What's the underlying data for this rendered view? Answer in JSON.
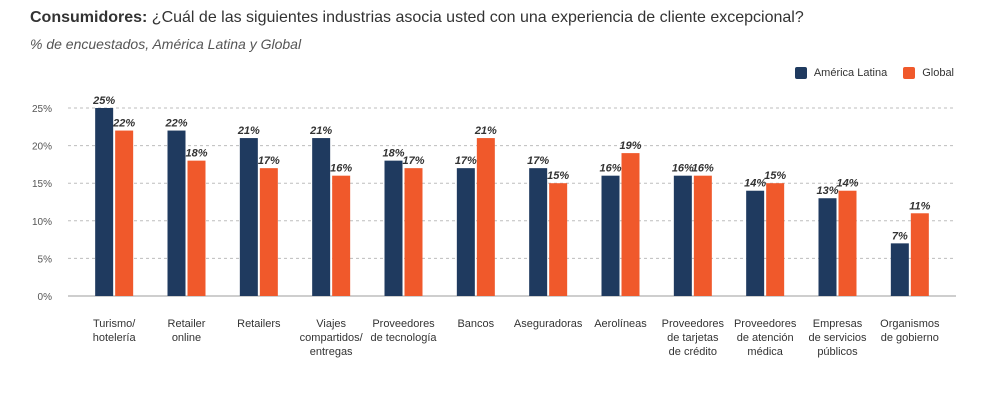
{
  "header": {
    "title_bold": "Consumidores:",
    "title_rest": " ¿Cuál de las siguientes industrias asocia usted con una experiencia de cliente excepcional?",
    "subtitle": "% de encuestados, América Latina y Global"
  },
  "colors": {
    "latam": "#1f3a5f",
    "global": "#f0592b",
    "grid": "#bdbdbd"
  },
  "chart_data": {
    "type": "bar",
    "title": "Consumidores: ¿Cuál de las siguientes industrias asocia usted con una experiencia de cliente excepcional?",
    "subtitle": "% de encuestados, América Latina y Global",
    "xlabel": "",
    "ylabel": "",
    "ylim": [
      0,
      25
    ],
    "yticks": [
      "0%",
      "5%",
      "10%",
      "15%",
      "20%",
      "25%"
    ],
    "grid": true,
    "legend_position": "top-right",
    "categories": [
      [
        "Turismo/",
        "hotelería"
      ],
      [
        "Retailer",
        "online"
      ],
      [
        "Retailers"
      ],
      [
        "Viajes",
        "compartidos/",
        "entregas"
      ],
      [
        "Proveedores",
        "de tecnología"
      ],
      [
        "Bancos"
      ],
      [
        "Aseguradoras"
      ],
      [
        "Aerolíneas"
      ],
      [
        "Proveedores",
        "de tarjetas",
        "de crédito"
      ],
      [
        "Proveedores",
        "de atención",
        "médica"
      ],
      [
        "Empresas",
        "de servicios",
        "públicos"
      ],
      [
        "Organismos",
        "de gobierno"
      ]
    ],
    "series": [
      {
        "name": "América Latina",
        "values": [
          25,
          22,
          21,
          21,
          18,
          17,
          17,
          16,
          16,
          14,
          13,
          7
        ],
        "labels": [
          "25%",
          "22%",
          "21%",
          "21%",
          "18%",
          "17%",
          "17%",
          "16%",
          "16%",
          "14%",
          "13%",
          "7%"
        ]
      },
      {
        "name": "Global",
        "values": [
          22,
          18,
          17,
          16,
          17,
          21,
          15,
          19,
          16,
          15,
          14,
          11
        ],
        "labels": [
          "22%",
          "18%",
          "17%",
          "16%",
          "17%",
          "21%",
          "15%",
          "19%",
          "16%",
          "15%",
          "14%",
          "11%"
        ]
      }
    ]
  }
}
